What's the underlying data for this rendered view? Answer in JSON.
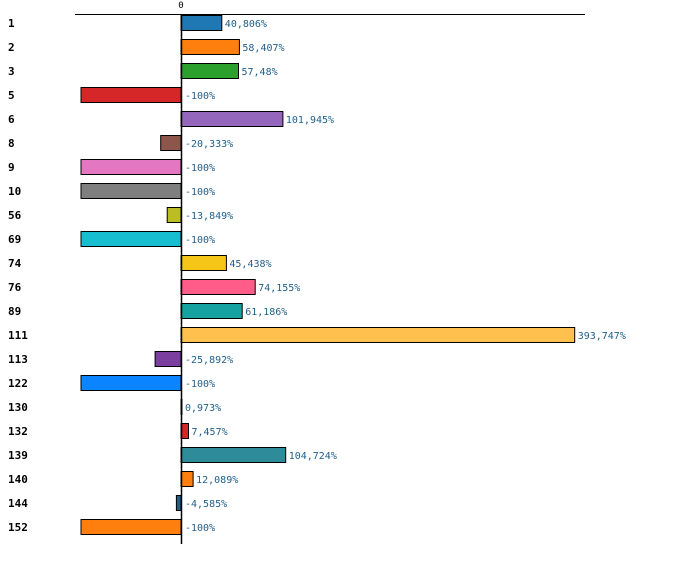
{
  "chart_data": {
    "type": "bar",
    "orientation": "horizontal",
    "x_axis_tick": "0",
    "categories": [
      "1",
      "2",
      "3",
      "5",
      "6",
      "8",
      "9",
      "10",
      "56",
      "69",
      "74",
      "76",
      "89",
      "111",
      "113",
      "122",
      "130",
      "132",
      "139",
      "140",
      "144",
      "152"
    ],
    "values": [
      40.806,
      58.407,
      57.48,
      -100,
      101.945,
      -20.333,
      -100,
      -100,
      -13.849,
      -100,
      45.438,
      74.155,
      61.186,
      393.747,
      -25.892,
      -100,
      0.973,
      7.457,
      104.724,
      12.089,
      -4.585,
      -100
    ],
    "value_labels": [
      "40,806%",
      "58,407%",
      "57,48%",
      "-100%",
      "101,945%",
      "-20,333%",
      "-100%",
      "-100%",
      "-13,849%",
      "-100%",
      "45,438%",
      "74,155%",
      "61,186%",
      "393,747%",
      "-25,892%",
      "-100%",
      "0,973%",
      "7,457%",
      "104,724%",
      "12,089%",
      "-4,585%",
      "-100%"
    ],
    "colors": [
      "#1f77b4",
      "#ff7f0e",
      "#2ca02c",
      "#d62728",
      "#9467bd",
      "#8c564b",
      "#e377c2",
      "#7f7f7f",
      "#bcbd22",
      "#17becf",
      "#f5c518",
      "#ff5c8a",
      "#17a2a2",
      "#ffc04d",
      "#7b3fa0",
      "#0a84ff",
      "#8fbf3f",
      "#d62728",
      "#2e8b9a",
      "#ff7f0e",
      "#1f5f8b",
      "#ff7f0e"
    ],
    "xlim": [
      -100,
      400
    ],
    "title": "",
    "xlabel": "",
    "ylabel": ""
  }
}
